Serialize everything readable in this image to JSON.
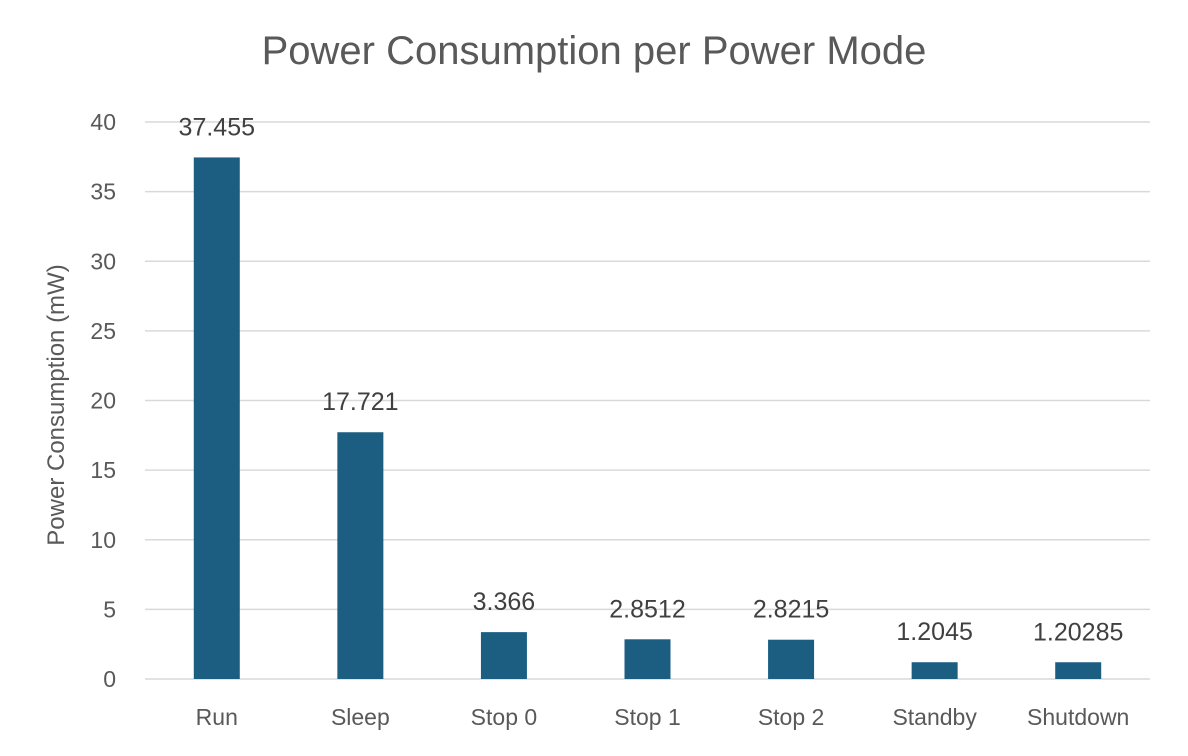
{
  "chart_data": {
    "type": "bar",
    "title": "Power Consumption per Power Mode",
    "xlabel": "",
    "ylabel": "Power Consumption (mW)",
    "categories": [
      "Run",
      "Sleep",
      "Stop 0",
      "Stop 1",
      "Stop 2",
      "Standby",
      "Shutdown"
    ],
    "values": [
      37.455,
      17.721,
      3.366,
      2.8512,
      2.8215,
      1.2045,
      1.20285
    ],
    "data_labels": [
      "37.455",
      "17.721",
      "3.366",
      "2.8512",
      "2.8215",
      "1.2045",
      "1.20285"
    ],
    "ylim": [
      0,
      40
    ],
    "yticks": [
      0,
      5,
      10,
      15,
      20,
      25,
      30,
      35,
      40
    ],
    "grid": true,
    "legend": "none",
    "bar_color": "#1b5e82"
  }
}
